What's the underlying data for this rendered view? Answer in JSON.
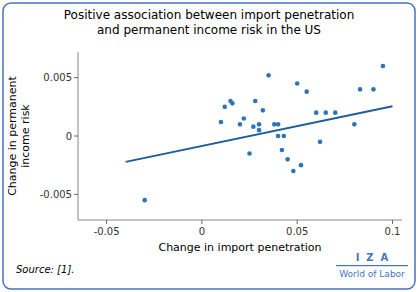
{
  "chart_data": {
    "type": "scatter",
    "title": "Positive association between import penetration\nand permanent income risk in the US",
    "xlabel": "Change in import penetration",
    "ylabel": "Change in permanent\nincome risk",
    "xlim": [
      -0.065,
      0.105
    ],
    "ylim": [
      -0.0072,
      0.0072
    ],
    "xticks": [
      -0.05,
      0,
      0.05,
      0.1
    ],
    "yticks": [
      -0.005,
      0,
      0.005
    ],
    "grid": false,
    "color": "#4472C4",
    "source": "Source: [1].",
    "annotations": [
      "I  Z  A",
      "World of Labor"
    ],
    "series": [
      {
        "type": "scatter",
        "color": "#2E75B6",
        "marker": "circle",
        "x": [
          -0.03,
          0.01,
          0.012,
          0.015,
          0.016,
          0.02,
          0.022,
          0.025,
          0.027,
          0.028,
          0.03,
          0.03,
          0.032,
          0.035,
          0.038,
          0.04,
          0.04,
          0.042,
          0.043,
          0.045,
          0.048,
          0.05,
          0.052,
          0.055,
          0.06,
          0.062,
          0.065,
          0.07,
          0.08,
          0.083,
          0.09,
          0.095
        ],
        "values": [
          -0.0055,
          0.0012,
          0.0025,
          0.003,
          0.0028,
          0.001,
          0.0015,
          -0.0015,
          0.0008,
          0.003,
          0.001,
          0.0005,
          0.0022,
          0.0052,
          0.001,
          0.001,
          0.0,
          -0.0012,
          0.0,
          -0.002,
          -0.003,
          0.0045,
          -0.0025,
          0.0038,
          0.002,
          -0.0005,
          0.002,
          0.002,
          0.001,
          0.004,
          0.004,
          0.006
        ]
      },
      {
        "type": "line",
        "color": "#1F5C99",
        "line_style": "solid",
        "x": [
          -0.04,
          0.1
        ],
        "values": [
          -0.00221,
          0.00255
        ]
      }
    ]
  }
}
